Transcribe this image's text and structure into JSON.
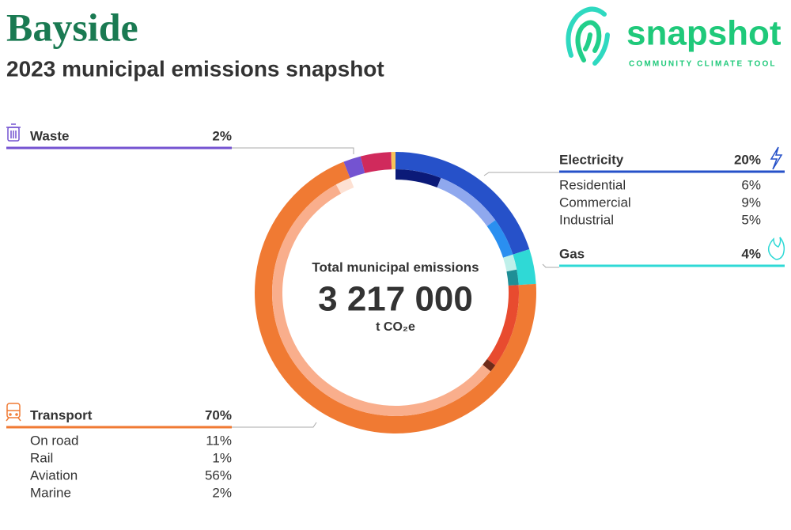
{
  "header": {
    "title": "Bayside",
    "subtitle": "2023 municipal emissions snapshot"
  },
  "logo": {
    "name": "snapshot",
    "tagline": "COMMUNITY CLIMATE TOOL"
  },
  "chart_data": {
    "type": "donut",
    "center_label": "Total municipal emissions",
    "total": {
      "value": 3217000,
      "label": "3 217 000"
    },
    "unit": "t CO₂e",
    "sectors": {
      "categories": [
        "Electricity",
        "Gas",
        "Transport",
        "Waste",
        null,
        null
      ],
      "values": [
        20,
        4,
        70,
        2,
        3.5,
        0.5
      ],
      "value_labels": [
        "20%",
        "4%",
        "70%",
        "2%",
        null,
        null
      ],
      "colors": [
        "#2651c9",
        "#2fd9d6",
        "#f07a33",
        "#7453d1",
        "#d02a5c",
        "#f7c35a"
      ]
    },
    "subsectors": {
      "categories": [
        "Residential",
        "Commercial",
        "Industrial",
        null,
        null,
        "On road",
        "Rail",
        "Aviation",
        "Marine"
      ],
      "values": [
        6,
        9,
        5,
        2,
        2,
        11,
        1,
        56,
        2
      ],
      "value_labels": [
        "6%",
        "9%",
        "5%",
        null,
        null,
        "11%",
        "1%",
        "56%",
        "2%"
      ],
      "colors": [
        "#0b1a78",
        "#8fa8ee",
        "#2a8ff0",
        "#bff0ea",
        "#1f8e96",
        "#e84b2f",
        "#6e2c1a",
        "#f9ae8c",
        "#fde1d3"
      ]
    }
  }
}
